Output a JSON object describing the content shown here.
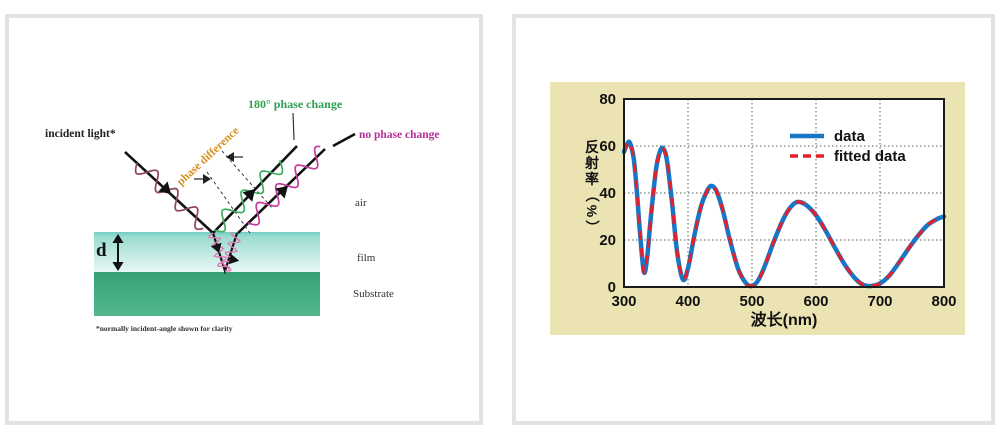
{
  "page": {
    "background": "#ffffff",
    "panel_border_color": "#e3e3e3"
  },
  "left_panel": {
    "type": "thin-film interference diagram",
    "labels": {
      "incident_light": "incident light*",
      "phase_change_180": "180° phase change",
      "no_phase_change": "no phase change",
      "phase_difference": "phase difference",
      "air": "air",
      "film": "film",
      "substrate": "Substrate",
      "thickness": "d",
      "footnote": "*normally incident-angle shown for clarity"
    },
    "colors": {
      "phase_change_180_label": "#2ea151",
      "no_phase_change_label": "#b5309b",
      "phase_difference_label": "#d69023",
      "incident_wave": "#8e4560",
      "reflected_wave_180": "#3fae63",
      "reflected_wave_no_change": "#c23d9d",
      "film_internal_wave": "#e07ab8",
      "film_top": "#6fcfc0",
      "film_bottom": "#e8f7f4",
      "substrate_top": "#37a176",
      "substrate_bottom": "#52b78c",
      "ray": "#111111"
    }
  },
  "right_panel": {
    "type": "reflectance spectrum chart",
    "background": "#ebe3b2"
  },
  "chart_data": {
    "type": "line",
    "title": "",
    "xlabel": "波长(nm)",
    "ylabel": "反射率（%）",
    "xlim": [
      300,
      800
    ],
    "ylim": [
      0,
      80
    ],
    "xticks": [
      300,
      400,
      500,
      600,
      700,
      800
    ],
    "yticks": [
      0,
      20,
      40,
      60,
      80
    ],
    "grid": "dotted",
    "legend_position": "upper-right inside plot",
    "series": [
      {
        "name": "data",
        "color": "#1777c7",
        "style": "solid",
        "line_width": 4.5
      },
      {
        "name": "fitted data",
        "color": "#e71f28",
        "style": "dashed",
        "line_width": 3,
        "note": "overlays the data series (identical values)"
      }
    ],
    "x": [
      300,
      305,
      309,
      315,
      320,
      325,
      331,
      336,
      342,
      350,
      356,
      361,
      367,
      375,
      383,
      392,
      400,
      410,
      420,
      430,
      437,
      445,
      455,
      465,
      478,
      490,
      500,
      510,
      520,
      535,
      550,
      562,
      572,
      585,
      600,
      615,
      630,
      645,
      660,
      672,
      685,
      700,
      715,
      730,
      745,
      760,
      775,
      790,
      800
    ],
    "y": [
      57.5,
      60.8,
      61.4,
      55,
      41,
      23,
      6.5,
      12,
      30,
      50,
      57.5,
      59,
      54,
      36,
      15,
      3.2,
      8,
      22,
      34,
      41,
      43,
      40.5,
      32,
      20.5,
      8,
      1.8,
      0.4,
      3,
      9,
      20,
      29.5,
      34.5,
      36.2,
      34.8,
      30.5,
      24,
      16.5,
      9.5,
      4,
      1.2,
      0.4,
      1.5,
      5,
      10.5,
      16.5,
      22,
      26.5,
      29,
      30
    ]
  }
}
